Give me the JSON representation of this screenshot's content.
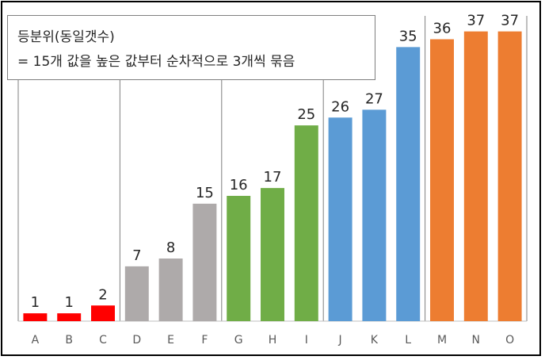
{
  "chart_data": {
    "type": "bar",
    "title": "",
    "xlabel": "",
    "ylabel": "",
    "categories": [
      "A",
      "B",
      "C",
      "D",
      "E",
      "F",
      "G",
      "H",
      "I",
      "J",
      "K",
      "L",
      "M",
      "N",
      "O"
    ],
    "values": [
      1,
      1,
      2,
      7,
      8,
      15,
      16,
      17,
      25,
      26,
      27,
      35,
      36,
      37,
      37
    ],
    "ylim": [
      0,
      40
    ],
    "bar_colors": [
      "#ff0000",
      "#ff0000",
      "#ff0000",
      "#aeaaaa",
      "#aeaaaa",
      "#aeaaaa",
      "#70ad47",
      "#70ad47",
      "#70ad47",
      "#5b9bd5",
      "#5b9bd5",
      "#5b9bd5",
      "#ed7d31",
      "#ed7d31",
      "#ed7d31"
    ],
    "group_size": 3,
    "data_labels": true,
    "grid": false
  },
  "legend": {
    "line1": "등분위(동일갯수)",
    "line2": "= 15개 값을 높은 값부터 순차적으로 3개씩 묶음"
  },
  "colors": {
    "separator": "#7f7f7f",
    "axis": "#bfbfbf",
    "label": "#262626",
    "tick": "#595959"
  }
}
